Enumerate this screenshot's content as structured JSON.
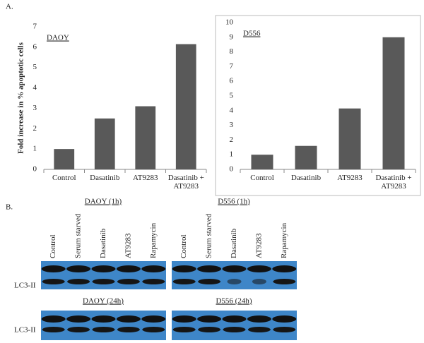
{
  "panel_labels": [
    "A.",
    "B."
  ],
  "chart_data": [
    {
      "type": "bar",
      "panel_title": "DAOY",
      "ylabel": "Fold increase in % apoptotic cells",
      "categories": [
        "Control",
        "Dasatinib",
        "AT9283",
        "Dasatinib + AT9283"
      ],
      "values": [
        1,
        2.5,
        3.1,
        6.15
      ],
      "color": "#595959",
      "ylim": [
        0,
        7
      ],
      "yticks": [
        0,
        1,
        2,
        3,
        4,
        5,
        6,
        7
      ]
    },
    {
      "type": "bar",
      "panel_title": "D556",
      "categories": [
        "Control",
        "Dasatinib",
        "AT9283",
        "Dasatinib + AT9283"
      ],
      "values": [
        1,
        1.6,
        4.15,
        9
      ],
      "color": "#595959",
      "ylim": [
        0,
        10
      ],
      "yticks": [
        0,
        1,
        2,
        3,
        4,
        5,
        6,
        7,
        8,
        9,
        10
      ]
    }
  ],
  "blots": {
    "lanes": [
      "Control",
      "Serum starved",
      "Dasatinib",
      "AT9283",
      "Rapamycin"
    ],
    "row_label": "LC3-II",
    "panels": [
      "DAOY (1h)",
      "D556 (1h)",
      "DAOY (24h)",
      "D556 (24h)"
    ]
  }
}
